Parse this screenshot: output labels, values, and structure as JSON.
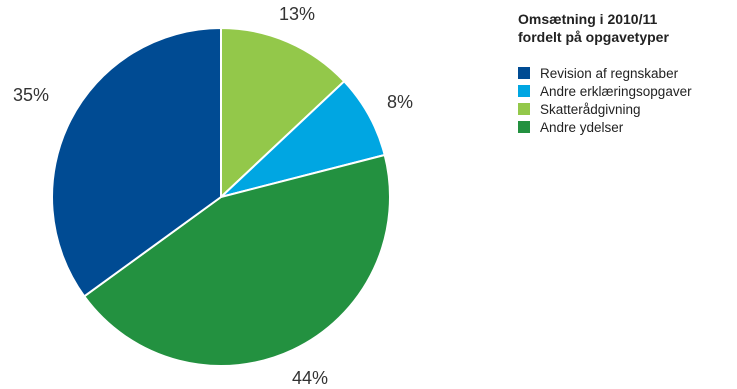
{
  "chart_data": {
    "type": "pie",
    "title": "Omsætning i 2010/11 fordelt på opgavetyper",
    "title_lines": [
      "Omsætning i 2010/11",
      "fordelt på opgavetyper"
    ],
    "legend_position": "right",
    "slices": [
      {
        "name": "Skatterådgivning",
        "value": 13,
        "label": "13%",
        "color": "#93c84a"
      },
      {
        "name": "Andre erklæringsopgaver",
        "value": 8,
        "label": "8%",
        "color": "#00a6e2"
      },
      {
        "name": "Andre ydelser",
        "value": 44,
        "label": "44%",
        "color": "#239140"
      },
      {
        "name": "Revision af regnskaber",
        "value": 35,
        "label": "35%",
        "color": "#004b93"
      }
    ],
    "legend": [
      {
        "name": "Revision af regnskaber",
        "color": "#004b93"
      },
      {
        "name": "Andre erklæringsopgaver",
        "color": "#00a6e2"
      },
      {
        "name": "Skatterådgivning",
        "color": "#93c84a"
      },
      {
        "name": "Andre ydelser",
        "color": "#239140"
      }
    ]
  }
}
